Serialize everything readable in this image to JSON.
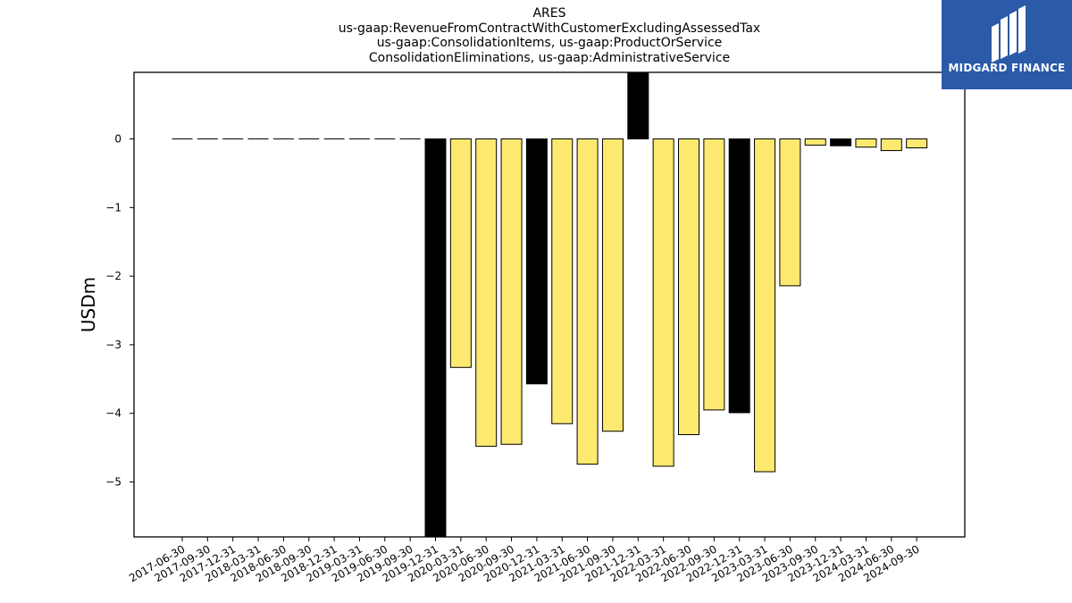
{
  "chart_data": {
    "type": "bar",
    "title_lines": [
      "ARES",
      "us-gaap:RevenueFromContractWithCustomerExcludingAssessedTax",
      "us-gaap:ConsolidationItems, us-gaap:ProductOrService",
      "ConsolidationEliminations, us-gaap:AdministrativeService"
    ],
    "ylabel": "USDm",
    "xlabel": "",
    "ylim": [
      -5.8,
      0.97
    ],
    "yticks": [
      0,
      -1,
      -2,
      -3,
      -4,
      -5
    ],
    "ytick_labels": [
      "0",
      "−1",
      "−2",
      "−3",
      "−4",
      "−5"
    ],
    "categories": [
      "2017-06-30",
      "2017-09-30",
      "2017-12-31",
      "2018-03-31",
      "2018-06-30",
      "2018-09-30",
      "2018-12-31",
      "2019-03-31",
      "2019-06-30",
      "2019-09-30",
      "2019-12-31",
      "2020-03-31",
      "2020-06-30",
      "2020-09-30",
      "2020-12-31",
      "2021-03-31",
      "2021-06-30",
      "2021-09-30",
      "2021-12-31",
      "2022-03-31",
      "2022-06-30",
      "2022-09-30",
      "2022-12-31",
      "2023-03-31",
      "2023-06-30",
      "2023-09-30",
      "2023-12-31",
      "2024-03-31",
      "2024-06-30",
      "2024-09-30"
    ],
    "values": [
      0,
      0,
      0,
      0,
      0,
      0,
      0,
      0,
      0,
      0,
      -5.8,
      -3.33,
      -4.48,
      -4.45,
      -3.57,
      -4.15,
      -4.74,
      -4.26,
      0.97,
      -4.77,
      -4.31,
      -3.95,
      -3.99,
      -4.85,
      -2.14,
      -0.09,
      -0.1,
      -0.12,
      -0.17,
      -0.13
    ],
    "annual": [
      false,
      false,
      false,
      false,
      false,
      false,
      false,
      false,
      false,
      false,
      true,
      false,
      false,
      false,
      true,
      false,
      false,
      false,
      true,
      false,
      false,
      false,
      true,
      false,
      false,
      false,
      true,
      false,
      false,
      false
    ],
    "colors": {
      "quarter": "#fde970",
      "annual": "#000000",
      "edge": "#000000"
    },
    "grid": false
  },
  "logo": {
    "text": "MIDGARD FINANCE",
    "bg": "#2a5aa8"
  }
}
